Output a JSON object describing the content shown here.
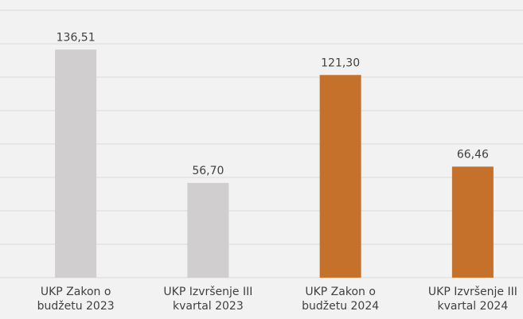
{
  "chart_data": {
    "type": "bar",
    "categories": [
      "UKP  Zakon o\nbudžetu 2023",
      "UKP Izvršenje III\nkvartal 2023",
      "UKP Zakon o\nbudžetu 2024",
      "UKP Izvršenje III\nkvartal 2024"
    ],
    "values": [
      136.51,
      56.7,
      121.3,
      66.46
    ],
    "value_labels": [
      "136,51",
      "56,70",
      "121,30",
      "66,46"
    ],
    "colors": [
      "#d0cece",
      "#d0cece",
      "#c5702b",
      "#c5702b"
    ],
    "ylim": [
      0,
      160
    ],
    "yticks": [
      0,
      20,
      40,
      60,
      80,
      100,
      120,
      140,
      160
    ],
    "grid": true
  }
}
